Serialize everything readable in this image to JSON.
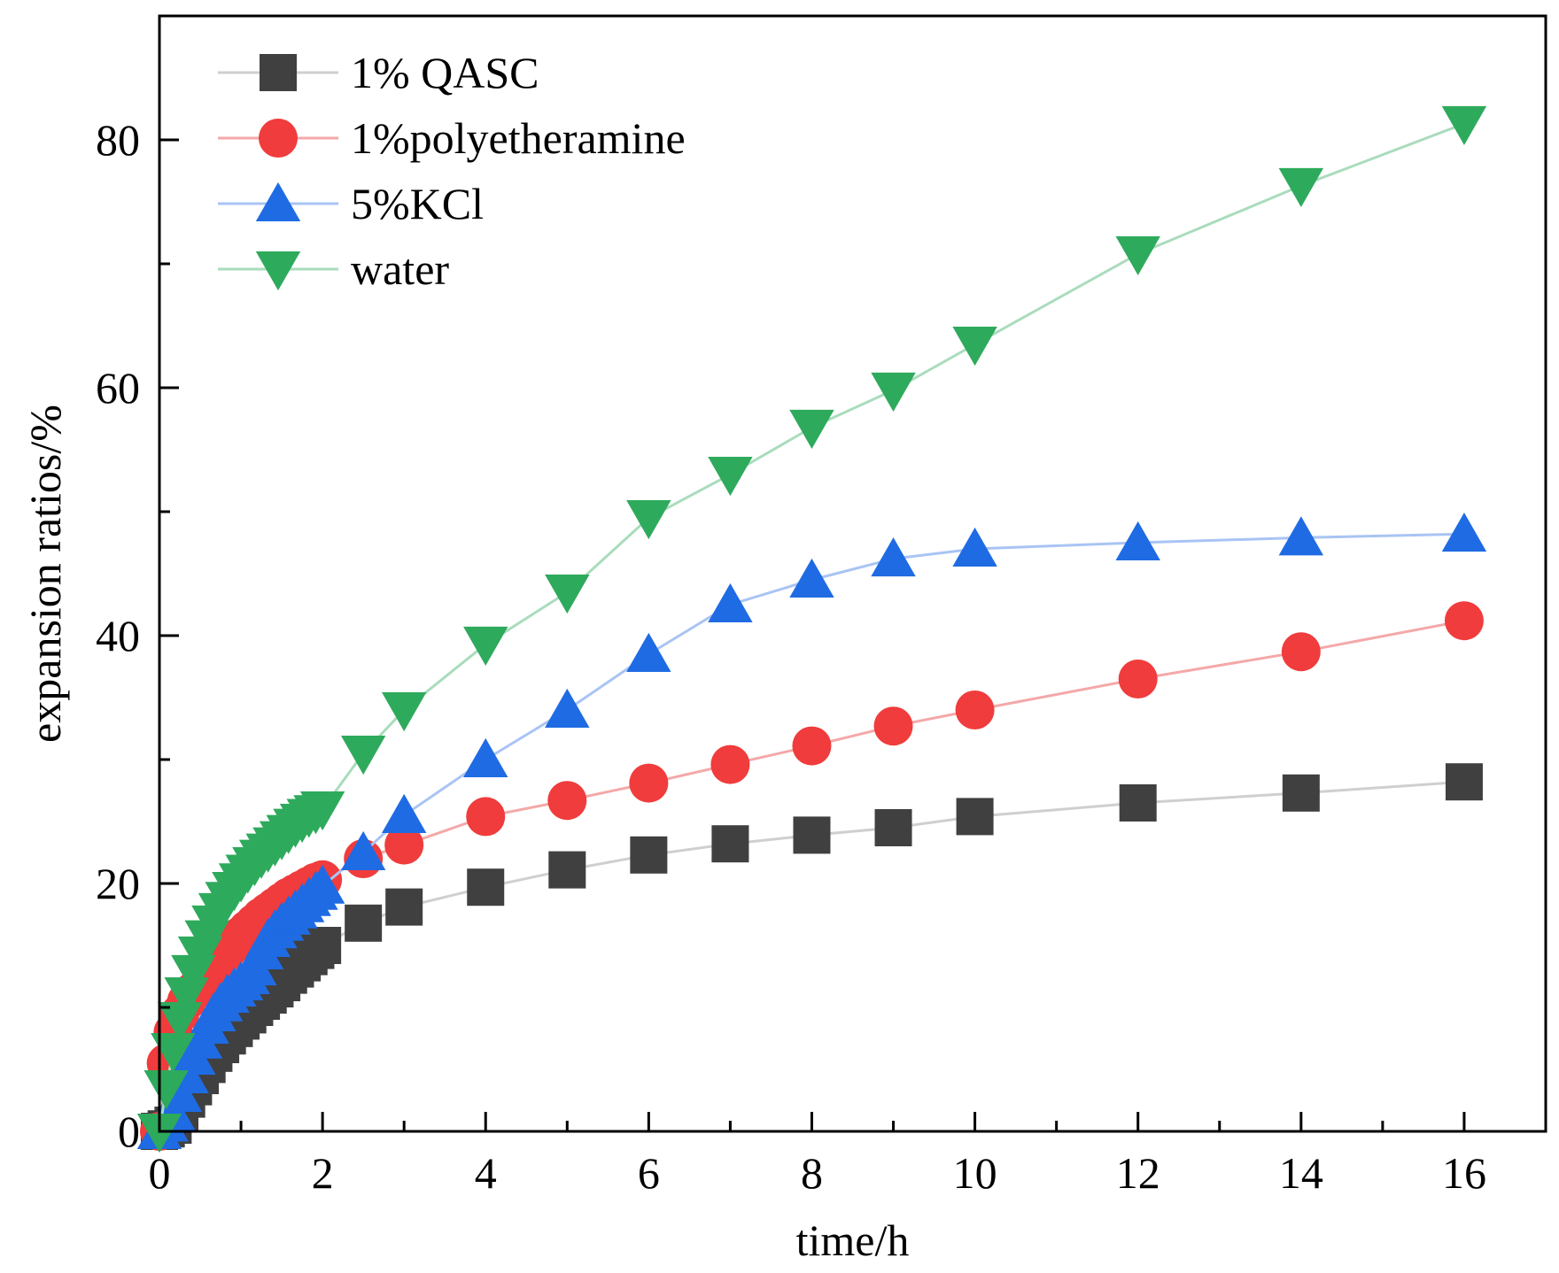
{
  "chart_data": {
    "type": "line",
    "title": "",
    "xlabel": "time/h",
    "ylabel": "expansion ratios/%",
    "xlim": [
      0,
      17
    ],
    "ylim": [
      0,
      90
    ],
    "xticks": [
      0,
      2,
      4,
      6,
      8,
      10,
      12,
      14,
      16
    ],
    "yticks": [
      0,
      20,
      40,
      60,
      80
    ],
    "grid": false,
    "legend_position": "top-left",
    "series": [
      {
        "name": "1% QASC",
        "marker": "square",
        "marker_color": "#404040",
        "line_color": "#cfcfcf",
        "x": [
          0,
          0.083,
          0.167,
          0.25,
          0.333,
          0.417,
          0.5,
          0.583,
          0.667,
          0.75,
          0.833,
          0.917,
          1.0,
          1.083,
          1.167,
          1.25,
          1.333,
          1.417,
          1.5,
          1.583,
          1.667,
          1.75,
          1.833,
          1.917,
          2,
          2.5,
          3,
          4,
          5,
          6,
          7,
          8,
          9,
          10,
          12,
          14,
          16
        ],
        "y": [
          0,
          0.2,
          0.5,
          1.5,
          2.6,
          3.6,
          4.5,
          5.4,
          6.3,
          7.0,
          7.7,
          8.3,
          8.9,
          9.4,
          10.0,
          10.5,
          11.0,
          11.5,
          12.0,
          12.6,
          13.1,
          13.6,
          14.1,
          14.6,
          15.0,
          16.8,
          18.1,
          19.7,
          21.1,
          22.3,
          23.2,
          23.9,
          24.5,
          25.4,
          26.5,
          27.3,
          28.2
        ]
      },
      {
        "name": "1%polyetheramine",
        "marker": "circle",
        "marker_color": "#f03c3c",
        "line_color": "#f4a8a8",
        "x": [
          0,
          0.083,
          0.167,
          0.25,
          0.333,
          0.417,
          0.5,
          0.583,
          0.667,
          0.75,
          0.833,
          0.917,
          1.0,
          1.083,
          1.167,
          1.25,
          1.333,
          1.417,
          1.5,
          1.583,
          1.667,
          1.75,
          1.833,
          1.917,
          2,
          2.5,
          3,
          4,
          5,
          6,
          7,
          8,
          9,
          10,
          12,
          14,
          16
        ],
        "y": [
          0,
          5.5,
          8.0,
          9.5,
          10.5,
          11.3,
          12.0,
          12.7,
          13.3,
          14.0,
          14.6,
          15.2,
          15.8,
          16.3,
          16.8,
          17.3,
          17.7,
          18.1,
          18.5,
          18.9,
          19.2,
          19.5,
          19.8,
          20.1,
          20.3,
          22.0,
          23.1,
          25.4,
          26.7,
          28.1,
          29.6,
          31.1,
          32.7,
          34.0,
          36.5,
          38.7,
          41.2
        ]
      },
      {
        "name": "5%KCl",
        "marker": "triangle-up",
        "marker_color": "#1f6be3",
        "line_color": "#a9c4f4",
        "x": [
          0,
          0.083,
          0.167,
          0.25,
          0.333,
          0.417,
          0.5,
          0.583,
          0.667,
          0.75,
          0.833,
          0.917,
          1.0,
          1.083,
          1.167,
          1.25,
          1.333,
          1.417,
          1.5,
          1.583,
          1.667,
          1.75,
          1.833,
          1.917,
          2,
          2.5,
          3,
          4,
          5,
          6,
          7,
          8,
          9,
          10,
          12,
          14,
          16
        ],
        "y": [
          0,
          0.6,
          1.5,
          3.0,
          4.5,
          6.0,
          7.3,
          8.5,
          9.5,
          10.3,
          11.0,
          11.5,
          12.0,
          12.5,
          13.2,
          14.5,
          15.5,
          16.2,
          16.8,
          17.3,
          17.8,
          18.3,
          18.8,
          19.3,
          19.8,
          22.5,
          25.5,
          30.0,
          34.0,
          38.5,
          42.5,
          44.5,
          46.2,
          47.0,
          47.5,
          47.9,
          48.2
        ]
      },
      {
        "name": "water",
        "marker": "triangle-down",
        "marker_color": "#2eaa5c",
        "line_color": "#a9dcbc",
        "x": [
          0,
          0.083,
          0.167,
          0.25,
          0.333,
          0.417,
          0.5,
          0.583,
          0.667,
          0.75,
          0.833,
          0.917,
          1.0,
          1.083,
          1.167,
          1.25,
          1.333,
          1.417,
          1.5,
          1.583,
          1.667,
          1.75,
          1.833,
          1.917,
          2,
          2.5,
          3,
          4,
          5,
          6,
          7,
          8,
          9,
          10,
          12,
          14,
          16
        ],
        "y": [
          0,
          3.5,
          6.5,
          9.0,
          11.0,
          12.8,
          14.3,
          15.6,
          16.8,
          17.8,
          18.7,
          19.5,
          20.2,
          20.9,
          21.5,
          22.1,
          22.6,
          23.1,
          23.6,
          24.1,
          24.6,
          25.0,
          25.4,
          25.7,
          26.0,
          30.5,
          34.0,
          39.3,
          43.5,
          49.5,
          53.0,
          56.8,
          59.8,
          63.5,
          70.8,
          76.3,
          81.3
        ]
      }
    ]
  }
}
